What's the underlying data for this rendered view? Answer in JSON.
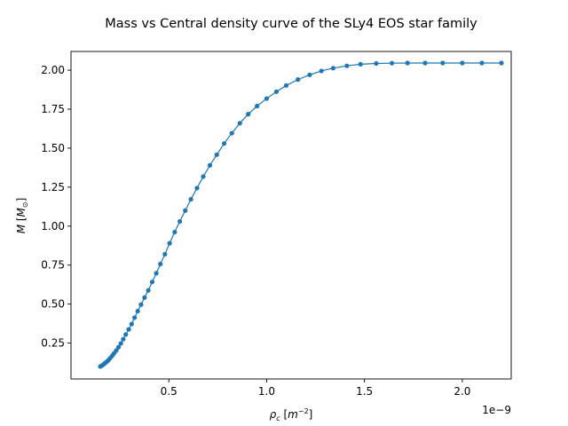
{
  "chart_data": {
    "type": "line",
    "title": "Mass vs Central density curve of the SLy4 EOS star family",
    "xlabel": "ρ_c [m^-2]",
    "ylabel": "M [M_⊙]",
    "x_offset_label": "1e−9",
    "xlim": [
      0.0,
      2.25
    ],
    "ylim": [
      0.02,
      2.12
    ],
    "xticks": [
      0.5,
      1.0,
      1.5,
      2.0
    ],
    "xtick_labels": [
      "0.5",
      "1.0",
      "1.5",
      "2.0"
    ],
    "yticks": [
      0.25,
      0.5,
      0.75,
      1.0,
      1.25,
      1.5,
      1.75,
      2.0
    ],
    "ytick_labels": [
      "0.25",
      "0.50",
      "0.75",
      "1.00",
      "1.25",
      "1.50",
      "1.75",
      "2.00"
    ],
    "grid": false,
    "color": "#1f77b4",
    "series": [
      {
        "x": [
          0.15,
          0.157,
          0.165,
          0.173,
          0.182,
          0.191,
          0.2,
          0.21,
          0.22,
          0.231,
          0.243,
          0.255,
          0.267,
          0.28,
          0.295,
          0.31,
          0.325,
          0.341,
          0.358,
          0.376,
          0.395,
          0.415,
          0.436,
          0.457,
          0.48,
          0.504,
          0.53,
          0.556,
          0.584,
          0.613,
          0.644,
          0.676,
          0.71,
          0.745,
          0.783,
          0.822,
          0.863,
          0.906,
          0.951,
          1.0,
          1.05,
          1.1,
          1.16,
          1.22,
          1.28,
          1.34,
          1.41,
          1.48,
          1.56,
          1.64,
          1.72,
          1.81,
          1.9,
          2.0,
          2.1,
          2.2
        ],
        "y": [
          0.1,
          0.105,
          0.112,
          0.121,
          0.13,
          0.14,
          0.153,
          0.168,
          0.184,
          0.202,
          0.224,
          0.248,
          0.275,
          0.305,
          0.338,
          0.372,
          0.413,
          0.455,
          0.497,
          0.542,
          0.588,
          0.642,
          0.698,
          0.757,
          0.82,
          0.89,
          0.962,
          1.03,
          1.1,
          1.172,
          1.244,
          1.318,
          1.39,
          1.458,
          1.53,
          1.596,
          1.66,
          1.718,
          1.77,
          1.818,
          1.862,
          1.902,
          1.94,
          1.97,
          1.995,
          2.013,
          2.028,
          2.038,
          2.043,
          2.045,
          2.046,
          2.046,
          2.046,
          2.046,
          2.046,
          2.046
        ]
      }
    ]
  }
}
